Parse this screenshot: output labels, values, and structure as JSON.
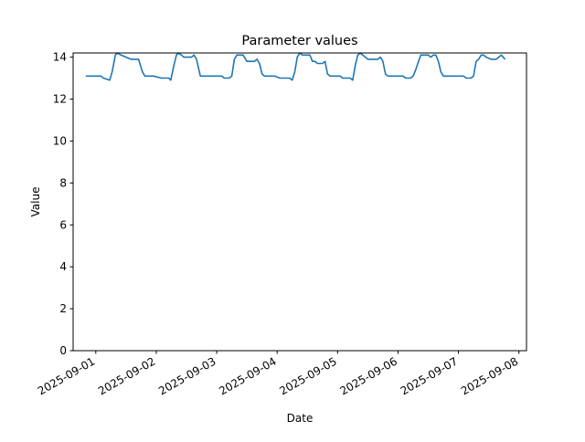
{
  "chart_data": {
    "type": "line",
    "title": "Parameter values",
    "xlabel": "Date",
    "ylabel": "Value",
    "ylim": [
      0,
      14.2
    ],
    "xlim": [
      "2025-08-31T15:00",
      "2025-09-08T03:00"
    ],
    "yticks": [
      0,
      2,
      4,
      6,
      8,
      10,
      12,
      14
    ],
    "xticks": [
      "2025-09-01",
      "2025-09-02",
      "2025-09-03",
      "2025-09-04",
      "2025-09-05",
      "2025-09-06",
      "2025-09-07",
      "2025-09-08"
    ],
    "grid": false,
    "line_color": "#1f77b4",
    "series": [
      {
        "points": [
          [
            "2025-08-31T20:00",
            13.1
          ],
          [
            "2025-08-31T23:00",
            13.1
          ],
          [
            "2025-09-01T02:00",
            13.1
          ],
          [
            "2025-09-01T03:00",
            13.0
          ],
          [
            "2025-09-01T05:30",
            12.9
          ],
          [
            "2025-09-01T06:30",
            13.3
          ],
          [
            "2025-09-01T07:45",
            14.1
          ],
          [
            "2025-09-01T08:30",
            14.2
          ],
          [
            "2025-09-01T10:00",
            14.1
          ],
          [
            "2025-09-01T12:00",
            14.0
          ],
          [
            "2025-09-01T14:00",
            13.9
          ],
          [
            "2025-09-01T17:00",
            13.9
          ],
          [
            "2025-09-01T18:30",
            13.3
          ],
          [
            "2025-09-01T19:30",
            13.1
          ],
          [
            "2025-09-01T23:00",
            13.1
          ],
          [
            "2025-09-02T02:00",
            13.0
          ],
          [
            "2025-09-02T05:00",
            13.0
          ],
          [
            "2025-09-02T05:45",
            12.9
          ],
          [
            "2025-09-02T07:00",
            13.6
          ],
          [
            "2025-09-02T08:00",
            14.1
          ],
          [
            "2025-09-02T08:45",
            14.2
          ],
          [
            "2025-09-02T10:00",
            14.1
          ],
          [
            "2025-09-02T11:00",
            14.0
          ],
          [
            "2025-09-02T14:00",
            14.0
          ],
          [
            "2025-09-02T15:00",
            14.1
          ],
          [
            "2025-09-02T16:00",
            13.9
          ],
          [
            "2025-09-02T17:30",
            13.1
          ],
          [
            "2025-09-02T22:00",
            13.1
          ],
          [
            "2025-09-03T02:00",
            13.1
          ],
          [
            "2025-09-03T03:00",
            13.0
          ],
          [
            "2025-09-03T05:00",
            13.0
          ],
          [
            "2025-09-03T06:00",
            13.1
          ],
          [
            "2025-09-03T07:00",
            13.9
          ],
          [
            "2025-09-03T08:00",
            14.1
          ],
          [
            "2025-09-03T10:30",
            14.1
          ],
          [
            "2025-09-03T12:00",
            13.8
          ],
          [
            "2025-09-03T15:00",
            13.8
          ],
          [
            "2025-09-03T16:00",
            13.9
          ],
          [
            "2025-09-03T17:00",
            13.7
          ],
          [
            "2025-09-03T18:00",
            13.2
          ],
          [
            "2025-09-03T19:00",
            13.1
          ],
          [
            "2025-09-03T23:00",
            13.1
          ],
          [
            "2025-09-04T01:00",
            13.0
          ],
          [
            "2025-09-04T05:00",
            13.0
          ],
          [
            "2025-09-04T06:00",
            12.9
          ],
          [
            "2025-09-04T07:00",
            13.3
          ],
          [
            "2025-09-04T08:00",
            14.0
          ],
          [
            "2025-09-04T09:00",
            14.2
          ],
          [
            "2025-09-04T10:00",
            14.1
          ],
          [
            "2025-09-04T13:00",
            14.1
          ],
          [
            "2025-09-04T14:00",
            13.8
          ],
          [
            "2025-09-04T15:00",
            13.8
          ],
          [
            "2025-09-04T16:00",
            13.7
          ],
          [
            "2025-09-04T18:00",
            13.7
          ],
          [
            "2025-09-04T19:00",
            13.8
          ],
          [
            "2025-09-04T20:00",
            13.2
          ],
          [
            "2025-09-04T21:00",
            13.1
          ],
          [
            "2025-09-05T01:00",
            13.1
          ],
          [
            "2025-09-05T02:00",
            13.0
          ],
          [
            "2025-09-05T05:00",
            13.0
          ],
          [
            "2025-09-05T06:00",
            12.9
          ],
          [
            "2025-09-05T07:00",
            13.6
          ],
          [
            "2025-09-05T08:00",
            14.1
          ],
          [
            "2025-09-05T09:00",
            14.2
          ],
          [
            "2025-09-05T10:00",
            14.1
          ],
          [
            "2025-09-05T12:00",
            13.9
          ],
          [
            "2025-09-05T16:00",
            13.9
          ],
          [
            "2025-09-05T17:00",
            14.0
          ],
          [
            "2025-09-05T18:00",
            13.8
          ],
          [
            "2025-09-05T19:00",
            13.2
          ],
          [
            "2025-09-05T20:00",
            13.1
          ],
          [
            "2025-09-06T02:00",
            13.1
          ],
          [
            "2025-09-06T03:00",
            13.0
          ],
          [
            "2025-09-06T05:00",
            13.0
          ],
          [
            "2025-09-06T06:00",
            13.1
          ],
          [
            "2025-09-06T07:00",
            13.4
          ],
          [
            "2025-09-06T09:00",
            14.1
          ],
          [
            "2025-09-06T12:00",
            14.1
          ],
          [
            "2025-09-06T13:00",
            14.0
          ],
          [
            "2025-09-06T14:00",
            14.1
          ],
          [
            "2025-09-06T15:00",
            14.1
          ],
          [
            "2025-09-06T16:00",
            13.8
          ],
          [
            "2025-09-06T17:00",
            13.3
          ],
          [
            "2025-09-06T18:00",
            13.1
          ],
          [
            "2025-09-06T23:00",
            13.1
          ],
          [
            "2025-09-07T02:00",
            13.1
          ],
          [
            "2025-09-07T03:00",
            13.0
          ],
          [
            "2025-09-07T05:00",
            13.0
          ],
          [
            "2025-09-07T06:00",
            13.1
          ],
          [
            "2025-09-07T07:00",
            13.8
          ],
          [
            "2025-09-07T08:00",
            13.9
          ],
          [
            "2025-09-07T09:00",
            14.1
          ],
          [
            "2025-09-07T10:00",
            14.1
          ],
          [
            "2025-09-07T11:00",
            14.0
          ],
          [
            "2025-09-07T13:00",
            13.9
          ],
          [
            "2025-09-07T15:00",
            13.9
          ],
          [
            "2025-09-07T17:00",
            14.1
          ],
          [
            "2025-09-07T18:30",
            13.9
          ]
        ]
      }
    ]
  }
}
